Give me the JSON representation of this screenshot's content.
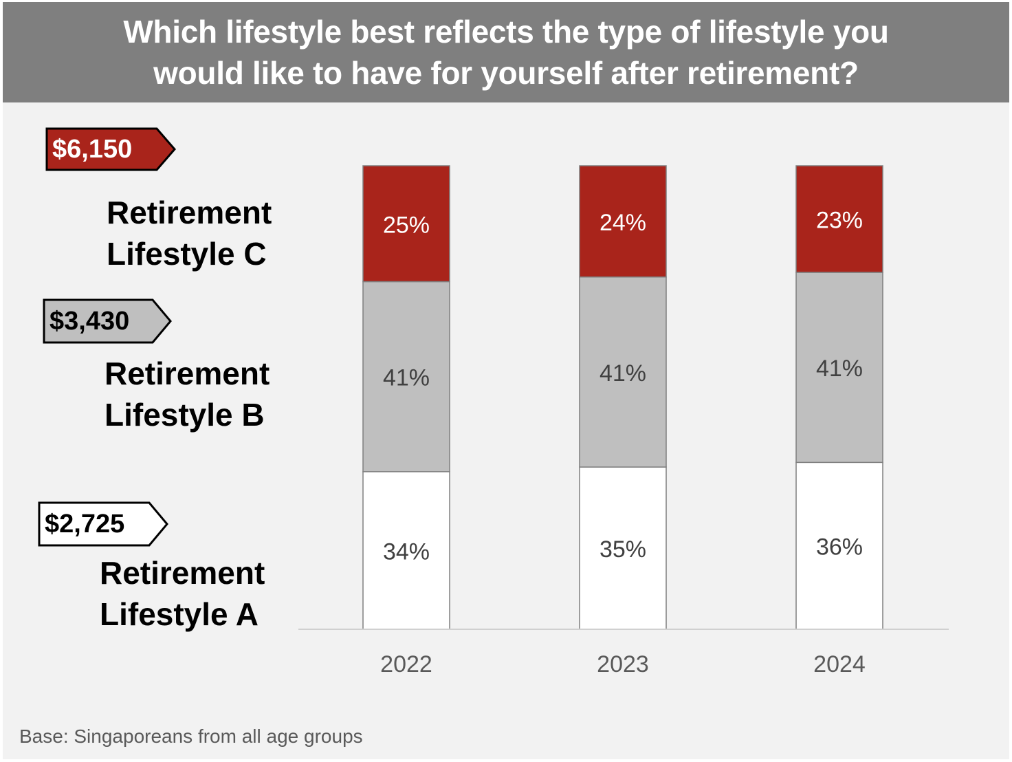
{
  "header": {
    "title": "Which lifestyle best reflects the type of lifestyle you\nwould like to have for yourself after retirement?"
  },
  "lifestyles": [
    {
      "price": "$6,150",
      "line1": "Retirement",
      "line2": "Lifestyle C",
      "tag_fill": "#a9241b",
      "tag_text": "#ffffff"
    },
    {
      "price": "$3,430",
      "line1": "Retirement",
      "line2": "Lifestyle B",
      "tag_fill": "#bfbfbf",
      "tag_text": "#000000"
    },
    {
      "price": "$2,725",
      "line1": "Retirement",
      "line2": "Lifestyle A",
      "tag_fill": "#ffffff",
      "tag_text": "#000000"
    }
  ],
  "chart_data": {
    "type": "bar",
    "stacked": true,
    "categories": [
      "2022",
      "2023",
      "2024"
    ],
    "series": [
      {
        "name": "Retirement Lifestyle A",
        "values": [
          34,
          35,
          36
        ],
        "labels": [
          "34%",
          "35%",
          "36%"
        ],
        "color": "#ffffff"
      },
      {
        "name": "Retirement Lifestyle B",
        "values": [
          41,
          41,
          41
        ],
        "labels": [
          "41%",
          "41%",
          "41%"
        ],
        "color": "#bfbfbf"
      },
      {
        "name": "Retirement Lifestyle C",
        "values": [
          25,
          24,
          23
        ],
        "labels": [
          "25%",
          "24%",
          "23%"
        ],
        "color": "#a9241b"
      }
    ],
    "ylim": [
      0,
      100
    ]
  },
  "footer": {
    "base": "Base: Singaporeans from all age groups"
  }
}
